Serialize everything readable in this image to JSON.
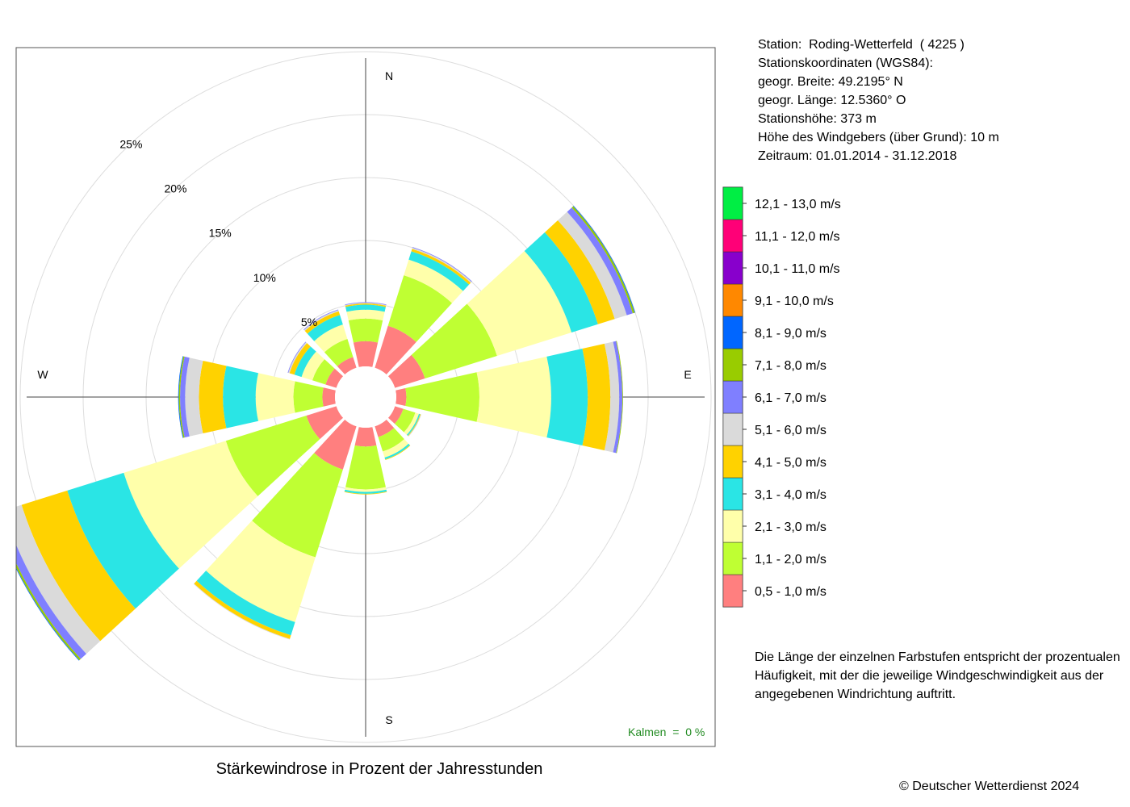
{
  "station": {
    "lines": [
      "Station:  Roding-Wetterfeld  ( 4225 )",
      "Stationskoordinaten (WGS84):",
      "geogr. Breite: 49.2195° N",
      "geogr. Länge: 12.5360° O",
      "Stationshöhe: 373 m",
      "Höhe des Windgebers (über Grund): 10 m",
      "Zeitraum: 01.01.2014 - 31.12.2018"
    ]
  },
  "note": "Die Länge der einzelnen Farbstufen entspricht der prozentualen Häufigkeit, mit der die jeweilige Windgeschwindigkeit aus der angegebenen Windrichtung auftritt.",
  "title": "Stärkewindrose in Prozent der Jahresstunden",
  "calm_label": "Kalmen  =  0 %",
  "copyright": "© Deutscher Wetterdienst  2024",
  "chart_data": {
    "type": "wind-rose",
    "unit": "%",
    "radial_ticks": [
      5,
      10,
      15,
      20,
      25
    ],
    "radial_tick_labels": [
      "5%",
      "10%",
      "15%",
      "20%",
      "25%"
    ],
    "rmax": 25,
    "compass_labels": [
      "N",
      "E",
      "S",
      "W"
    ],
    "calm_percent": 0,
    "legend": [
      {
        "label": "0,5 - 1,0 m/s",
        "color": "#FF7F7F"
      },
      {
        "label": "1,1 - 2,0 m/s",
        "color": "#BFFF33"
      },
      {
        "label": "2,1 - 3,0 m/s",
        "color": "#FFFFAA"
      },
      {
        "label": "3,1 - 4,0 m/s",
        "color": "#2AE5E5"
      },
      {
        "label": "4,1 - 5,0 m/s",
        "color": "#FFD200"
      },
      {
        "label": "5,1 - 6,0 m/s",
        "color": "#DADADA"
      },
      {
        "label": "6,1 - 7,0 m/s",
        "color": "#7F7FFF"
      },
      {
        "label": "7,1 - 8,0 m/s",
        "color": "#99CC00"
      },
      {
        "label": "8,1 - 9,0 m/s",
        "color": "#0066FF"
      },
      {
        "label": "9,1 - 10,0 m/s",
        "color": "#FF8800"
      },
      {
        "label": "10,1 - 11,0 m/s",
        "color": "#8800CC"
      },
      {
        "label": "11,1 - 12,0 m/s",
        "color": "#FF0077"
      },
      {
        "label": "12,1 - 13,0 m/s",
        "color": "#00EE44"
      }
    ],
    "directions": [
      0,
      30,
      60,
      90,
      120,
      150,
      180,
      210,
      240,
      270,
      300,
      330
    ],
    "frequencies": [
      [
        2.0,
        1.8,
        0.7,
        0.4,
        0.1,
        0.05,
        0.05,
        0,
        0,
        0,
        0,
        0,
        0
      ],
      [
        3.5,
        4.2,
        1.3,
        0.7,
        0.2,
        0.1,
        0.05,
        0,
        0,
        0,
        0,
        0,
        0
      ],
      [
        2.5,
        6.0,
        6.2,
        2.2,
        1.4,
        1.0,
        0.5,
        0.15,
        0.05,
        0,
        0,
        0,
        0
      ],
      [
        0.8,
        5.8,
        5.7,
        2.9,
        1.8,
        0.7,
        0.25,
        0.05,
        0,
        0,
        0,
        0,
        0
      ],
      [
        0.7,
        1.0,
        0.3,
        0.1,
        0.05,
        0.05,
        0,
        0,
        0,
        0,
        0,
        0,
        0
      ],
      [
        0.9,
        1.2,
        0.5,
        0.15,
        0.05,
        0,
        0,
        0,
        0,
        0,
        0,
        0,
        0
      ],
      [
        1.5,
        3.4,
        0.2,
        0.15,
        0.05,
        0,
        0,
        0,
        0,
        0,
        0,
        0,
        0
      ],
      [
        3.6,
        7.3,
        5.4,
        1.1,
        0.3,
        0.05,
        0,
        0,
        0,
        0,
        0,
        0,
        0
      ],
      [
        2.5,
        6.7,
        8.5,
        4.7,
        3.8,
        1.5,
        0.6,
        0.15,
        0.05,
        0,
        0,
        0,
        0
      ],
      [
        1.0,
        2.3,
        3.0,
        2.6,
        1.9,
        1.1,
        0.4,
        0.1,
        0.05,
        0,
        0,
        0,
        0
      ],
      [
        0.9,
        1.1,
        0.9,
        0.6,
        0.4,
        0.1,
        0.05,
        0,
        0,
        0,
        0,
        0,
        0
      ],
      [
        0.9,
        1.5,
        1.2,
        0.8,
        0.3,
        0.1,
        0.05,
        0,
        0,
        0,
        0,
        0,
        0
      ]
    ]
  }
}
